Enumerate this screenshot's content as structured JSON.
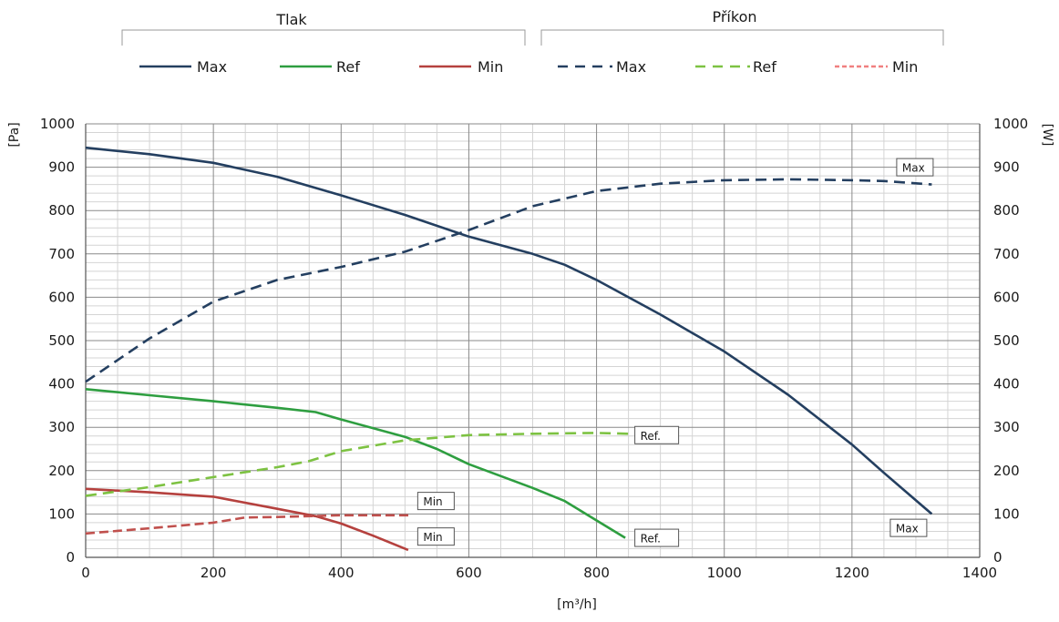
{
  "chart_data": {
    "type": "line",
    "legend_groups": [
      {
        "title": "Tlak",
        "entries": [
          "Max",
          "Ref",
          "Min"
        ]
      },
      {
        "title": "Příkon",
        "entries": [
          "Max",
          "Ref",
          "Min"
        ]
      }
    ],
    "x_axis": {
      "label": "[m³/h]",
      "range": [
        0,
        1400
      ],
      "ticks": [
        "0",
        "200",
        "400",
        "600",
        "800",
        "1000",
        "1200",
        "1400"
      ]
    },
    "y_axis_left": {
      "label": "[Pa]",
      "range": [
        0,
        1000
      ],
      "ticks": [
        "0",
        "100",
        "200",
        "300",
        "400",
        "500",
        "600",
        "700",
        "800",
        "900",
        "1000"
      ]
    },
    "y_axis_right": {
      "label": "[W]",
      "range": [
        0,
        1000
      ],
      "ticks": [
        "0",
        "100",
        "200",
        "300",
        "400",
        "500",
        "600",
        "700",
        "800",
        "900",
        "1000"
      ]
    },
    "grid": true,
    "series": [
      {
        "name": "Max",
        "group": "Tlak",
        "axis": "left",
        "style": "solid",
        "color": "#243f60",
        "x": [
          0,
          100,
          200,
          300,
          400,
          500,
          600,
          700,
          750,
          800,
          900,
          1000,
          1100,
          1200,
          1250,
          1325
        ],
        "y": [
          945,
          930,
          910,
          878,
          835,
          790,
          740,
          700,
          675,
          640,
          560,
          475,
          375,
          260,
          195,
          100
        ]
      },
      {
        "name": "Ref",
        "group": "Tlak",
        "axis": "left",
        "style": "solid",
        "color": "#2e9e40",
        "x": [
          0,
          100,
          200,
          300,
          360,
          400,
          500,
          550,
          600,
          700,
          750,
          800,
          845
        ],
        "y": [
          388,
          374,
          360,
          345,
          335,
          318,
          278,
          250,
          215,
          160,
          130,
          85,
          45
        ]
      },
      {
        "name": "Min",
        "group": "Tlak",
        "axis": "left",
        "style": "solid",
        "color": "#b5413e",
        "x": [
          0,
          100,
          200,
          300,
          360,
          400,
          450,
          505
        ],
        "y": [
          158,
          150,
          140,
          112,
          95,
          78,
          50,
          17
        ]
      },
      {
        "name": "Max",
        "group": "Příkon",
        "axis": "right",
        "style": "dashed",
        "color": "#243f60",
        "x": [
          0,
          100,
          200,
          300,
          400,
          500,
          600,
          700,
          800,
          900,
          1000,
          1100,
          1200,
          1250,
          1325
        ],
        "y": [
          405,
          505,
          590,
          640,
          670,
          705,
          755,
          810,
          845,
          862,
          870,
          872,
          870,
          868,
          860
        ]
      },
      {
        "name": "Ref",
        "group": "Příkon",
        "axis": "right",
        "style": "dashed",
        "color": "#7dc242",
        "x": [
          0,
          100,
          200,
          300,
          350,
          400,
          500,
          600,
          700,
          800,
          850
        ],
        "y": [
          142,
          162,
          185,
          208,
          222,
          245,
          270,
          282,
          285,
          287,
          285
        ]
      },
      {
        "name": "Min",
        "group": "Příkon",
        "axis": "right",
        "style": "dashed",
        "color": "#c0504d",
        "x": [
          0,
          100,
          200,
          250,
          300,
          400,
          500,
          510
        ],
        "y": [
          55,
          67,
          80,
          92,
          93,
          97,
          97,
          97
        ]
      }
    ],
    "annotations": [
      {
        "text": "Max",
        "x": 1270,
        "y": 900
      },
      {
        "text": "Max",
        "x": 1260,
        "y": 68
      },
      {
        "text": "Ref.",
        "x": 860,
        "y": 282
      },
      {
        "text": "Ref.",
        "x": 860,
        "y": 45
      },
      {
        "text": "Min",
        "x": 520,
        "y": 130
      },
      {
        "text": "Min",
        "x": 520,
        "y": 48
      }
    ]
  }
}
